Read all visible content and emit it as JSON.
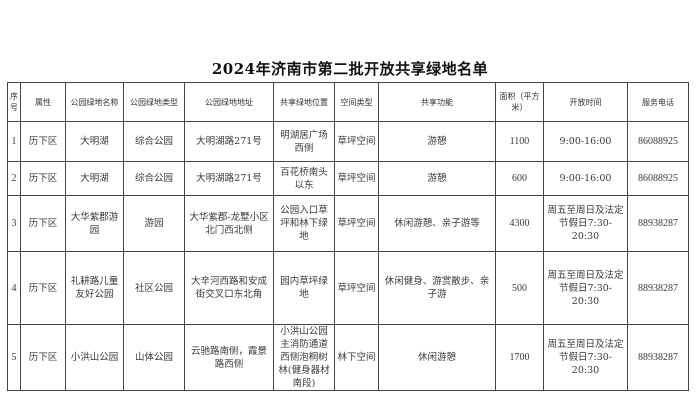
{
  "title": "2024年济南市第二批开放共享绿地名单",
  "columns": [
    "序号",
    "属性",
    "公园绿地名称",
    "公园绿地类型",
    "公园绿地地址",
    "共享绿地位置",
    "空间类型",
    "共享功能",
    "面积（平方米）",
    "开放时间",
    "服务电话"
  ],
  "rows": [
    [
      "1",
      "历下区",
      "大明湖",
      "综合公园",
      "大明湖路271号",
      "明湖居广场西侧",
      "草坪空间",
      "游憩",
      "1100",
      "9:00-16:00",
      "86088925"
    ],
    [
      "2",
      "历下区",
      "大明湖",
      "综合公园",
      "大明湖路271号",
      "百花桥南头以东",
      "草坪空间",
      "游憩",
      "600",
      "9:00-16:00",
      "86088925"
    ],
    [
      "3",
      "历下区",
      "大华紫郡游园",
      "游园",
      "大华紫郡-龙墅小区北门西北侧",
      "公园入口草坪和林下绿地",
      "草坪空间",
      "休闲游憩、亲子游等",
      "4300",
      "周五至周日及法定节假日7:30-20:30",
      "88938287"
    ],
    [
      "4",
      "历下区",
      "礼耕路儿童友好公园",
      "社区公园",
      "大辛河西路和安成街交叉口东北角",
      "园内草坪绿地",
      "草坪空间",
      "休闲健身、游赏散步、亲子游",
      "500",
      "周五至周日及法定节假日7:30-20:30",
      "88938287"
    ],
    [
      "5",
      "历下区",
      "小洪山公园",
      "山体公园",
      "云驰路南侧，霞景路西侧",
      "小洪山公园主消防通道西侧泡桐树林(健身器材南段)",
      "林下空间",
      "休闲游憩",
      "1700",
      "周五至周日及法定节假日7:30-20:30",
      "88938287"
    ]
  ]
}
